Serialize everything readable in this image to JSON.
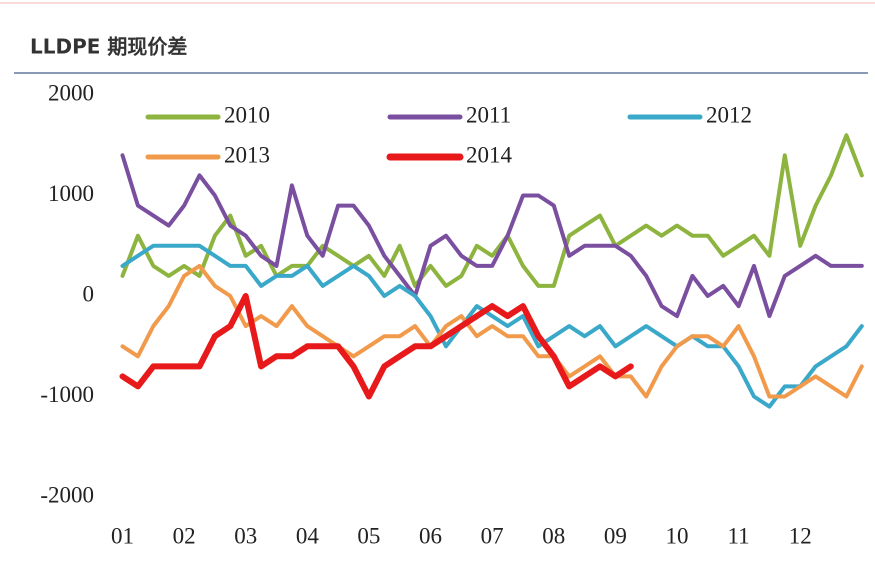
{
  "chart_data": {
    "type": "line",
    "title": "LLDPE 期现价差",
    "x": [
      1.0,
      1.25,
      1.5,
      1.75,
      2.0,
      2.25,
      2.5,
      2.75,
      3.0,
      3.25,
      3.5,
      3.75,
      4.0,
      4.25,
      4.5,
      4.75,
      5.0,
      5.25,
      5.5,
      5.75,
      6.0,
      6.25,
      6.5,
      6.75,
      7.0,
      7.25,
      7.5,
      7.75,
      8.0,
      8.25,
      8.5,
      8.75,
      9.0,
      9.25,
      9.5,
      9.75,
      10.0,
      10.25,
      10.5,
      10.75,
      11.0,
      11.25,
      11.5,
      11.75,
      12.0,
      12.25,
      12.5,
      12.75,
      13.0
    ],
    "series": [
      {
        "name": "2010",
        "color": "#8db43f",
        "values": [
          200,
          600,
          300,
          200,
          300,
          200,
          600,
          800,
          400,
          500,
          200,
          300,
          300,
          500,
          400,
          300,
          400,
          200,
          500,
          100,
          300,
          100,
          200,
          500,
          400,
          600,
          300,
          100,
          100,
          600,
          700,
          800,
          500,
          600,
          700,
          600,
          700,
          600,
          600,
          400,
          500,
          600,
          400,
          1400,
          500,
          900,
          1200,
          1600,
          1200
        ]
      },
      {
        "name": "2011",
        "color": "#7a4fa0",
        "values": [
          1400,
          900,
          800,
          700,
          900,
          1200,
          1000,
          700,
          600,
          400,
          300,
          1100,
          600,
          400,
          900,
          900,
          700,
          400,
          200,
          0,
          500,
          600,
          400,
          300,
          300,
          600,
          1000,
          1000,
          900,
          400,
          500,
          500,
          500,
          400,
          200,
          -100,
          -200,
          200,
          0,
          100,
          -100,
          300,
          -200,
          200,
          300,
          400,
          300,
          300,
          300
        ]
      },
      {
        "name": "2012",
        "color": "#3aa8c9",
        "values": [
          300,
          400,
          500,
          500,
          500,
          500,
          400,
          300,
          300,
          100,
          200,
          200,
          300,
          100,
          200,
          300,
          200,
          0,
          100,
          0,
          -200,
          -500,
          -300,
          -100,
          -200,
          -300,
          -200,
          -500,
          -400,
          -300,
          -400,
          -300,
          -500,
          -400,
          -300,
          -400,
          -500,
          -400,
          -500,
          -500,
          -700,
          -1000,
          -1100,
          -900,
          -900,
          -700,
          -600,
          -500,
          -300
        ]
      },
      {
        "name": "2013",
        "color": "#f29a4b",
        "values": [
          -500,
          -600,
          -300,
          -100,
          200,
          300,
          100,
          0,
          -300,
          -200,
          -300,
          -100,
          -300,
          -400,
          -500,
          -600,
          -500,
          -400,
          -400,
          -300,
          -500,
          -300,
          -200,
          -400,
          -300,
          -400,
          -400,
          -600,
          -600,
          -800,
          -700,
          -600,
          -800,
          -800,
          -1000,
          -700,
          -500,
          -400,
          -400,
          -500,
          -300,
          -600,
          -1000,
          -1000,
          -900,
          -800,
          -900,
          -1000,
          -700
        ]
      },
      {
        "name": "2014",
        "color": "#e8191a",
        "values": [
          -800,
          -900,
          -700,
          -700,
          -700,
          -700,
          -400,
          -300,
          0,
          -700,
          -600,
          -600,
          -500,
          -500,
          -500,
          -700,
          -1000,
          -700,
          -600,
          -500,
          -500,
          -400,
          -300,
          -200,
          -100,
          -200,
          -100,
          -400,
          -600,
          -900,
          -800,
          -700,
          -800,
          -700,
          null,
          null,
          null,
          null,
          null,
          null,
          null,
          null,
          null,
          null,
          null,
          null,
          null,
          null,
          null
        ]
      }
    ],
    "xlim": [
      0.7,
      13.1
    ],
    "xticks": [
      {
        "value": 1,
        "label": "01"
      },
      {
        "value": 2,
        "label": "02"
      },
      {
        "value": 3,
        "label": "03"
      },
      {
        "value": 4,
        "label": "04"
      },
      {
        "value": 5,
        "label": "05"
      },
      {
        "value": 6,
        "label": "06"
      },
      {
        "value": 7,
        "label": "07"
      },
      {
        "value": 8,
        "label": "08"
      },
      {
        "value": 9,
        "label": "09"
      },
      {
        "value": 10,
        "label": "10"
      },
      {
        "value": 11,
        "label": "11"
      },
      {
        "value": 12,
        "label": "12"
      }
    ],
    "ylim": [
      -2000,
      2000
    ],
    "yticks": [
      -2000,
      -1000,
      0,
      1000,
      2000
    ],
    "grid": false,
    "legend": "top"
  }
}
